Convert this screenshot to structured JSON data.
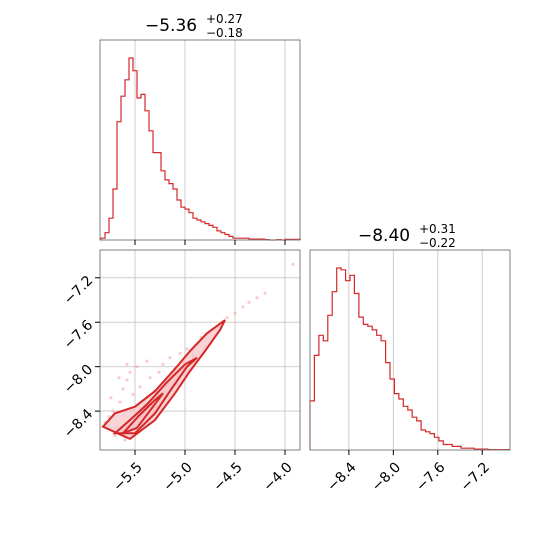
{
  "chart_data": [
    {
      "type": "histogram",
      "panel": "param-1-marginal",
      "title_value": "−5.36",
      "title_upper": "+0.27",
      "title_lower": "−0.18",
      "x_range": [
        -5.85,
        -3.85
      ],
      "x_ticks": [
        -5.5,
        -5.0,
        -4.5,
        -4.0
      ],
      "bins": [
        {
          "x": -5.84,
          "y": 0.01
        },
        {
          "x": -5.8,
          "y": 0.04
        },
        {
          "x": -5.76,
          "y": 0.12
        },
        {
          "x": -5.72,
          "y": 0.28
        },
        {
          "x": -5.68,
          "y": 0.65
        },
        {
          "x": -5.64,
          "y": 0.79
        },
        {
          "x": -5.6,
          "y": 0.88
        },
        {
          "x": -5.56,
          "y": 1.0
        },
        {
          "x": -5.52,
          "y": 0.93
        },
        {
          "x": -5.48,
          "y": 0.78
        },
        {
          "x": -5.44,
          "y": 0.8
        },
        {
          "x": -5.4,
          "y": 0.71
        },
        {
          "x": -5.36,
          "y": 0.6
        },
        {
          "x": -5.32,
          "y": 0.48
        },
        {
          "x": -5.28,
          "y": 0.48
        },
        {
          "x": -5.24,
          "y": 0.38
        },
        {
          "x": -5.2,
          "y": 0.33
        },
        {
          "x": -5.16,
          "y": 0.31
        },
        {
          "x": -5.12,
          "y": 0.28
        },
        {
          "x": -5.08,
          "y": 0.22
        },
        {
          "x": -5.04,
          "y": 0.18
        },
        {
          "x": -5.0,
          "y": 0.17
        },
        {
          "x": -4.96,
          "y": 0.15
        },
        {
          "x": -4.92,
          "y": 0.12
        },
        {
          "x": -4.88,
          "y": 0.11
        },
        {
          "x": -4.84,
          "y": 0.1
        },
        {
          "x": -4.8,
          "y": 0.09
        },
        {
          "x": -4.76,
          "y": 0.08
        },
        {
          "x": -4.72,
          "y": 0.07
        },
        {
          "x": -4.68,
          "y": 0.05
        },
        {
          "x": -4.64,
          "y": 0.04
        },
        {
          "x": -4.6,
          "y": 0.03
        },
        {
          "x": -4.56,
          "y": 0.02
        },
        {
          "x": -4.52,
          "y": 0.01
        },
        {
          "x": -4.48,
          "y": 0.01
        },
        {
          "x": -4.44,
          "y": 0.01
        },
        {
          "x": -4.4,
          "y": 0.01
        },
        {
          "x": -4.36,
          "y": 0.005
        },
        {
          "x": -4.32,
          "y": 0.005
        },
        {
          "x": -4.28,
          "y": 0.005
        },
        {
          "x": -4.24,
          "y": 0.005
        },
        {
          "x": -4.2,
          "y": 0.002
        },
        {
          "x": -4.16,
          "y": 0.0
        },
        {
          "x": -4.12,
          "y": 0.0
        },
        {
          "x": -4.08,
          "y": 0.002
        },
        {
          "x": -4.04,
          "y": 0.0
        },
        {
          "x": -4.0,
          "y": 0.004
        },
        {
          "x": -3.96,
          "y": 0.004
        },
        {
          "x": -3.92,
          "y": 0.004
        },
        {
          "x": -3.88,
          "y": 0.004
        }
      ]
    },
    {
      "type": "histogram",
      "panel": "param-2-marginal",
      "title_value": "−8.40",
      "title_upper": "+0.31",
      "title_lower": "−0.22",
      "x_range": [
        -8.75,
        -6.95
      ],
      "x_ticks": [
        -8.4,
        -8.0,
        -7.6,
        -7.2
      ],
      "bins": [
        {
          "x": -8.75,
          "y": 0.27
        },
        {
          "x": -8.71,
          "y": 0.52
        },
        {
          "x": -8.67,
          "y": 0.63
        },
        {
          "x": -8.63,
          "y": 0.6
        },
        {
          "x": -8.59,
          "y": 0.74
        },
        {
          "x": -8.55,
          "y": 0.87
        },
        {
          "x": -8.51,
          "y": 1.0
        },
        {
          "x": -8.47,
          "y": 0.99
        },
        {
          "x": -8.43,
          "y": 0.93
        },
        {
          "x": -8.39,
          "y": 0.96
        },
        {
          "x": -8.35,
          "y": 0.86
        },
        {
          "x": -8.31,
          "y": 0.73
        },
        {
          "x": -8.27,
          "y": 0.69
        },
        {
          "x": -8.23,
          "y": 0.68
        },
        {
          "x": -8.19,
          "y": 0.66
        },
        {
          "x": -8.15,
          "y": 0.63
        },
        {
          "x": -8.11,
          "y": 0.6
        },
        {
          "x": -8.07,
          "y": 0.48
        },
        {
          "x": -8.03,
          "y": 0.39
        },
        {
          "x": -7.99,
          "y": 0.31
        },
        {
          "x": -7.95,
          "y": 0.28
        },
        {
          "x": -7.91,
          "y": 0.24
        },
        {
          "x": -7.87,
          "y": 0.22
        },
        {
          "x": -7.83,
          "y": 0.18
        },
        {
          "x": -7.79,
          "y": 0.16
        },
        {
          "x": -7.75,
          "y": 0.11
        },
        {
          "x": -7.71,
          "y": 0.1
        },
        {
          "x": -7.67,
          "y": 0.09
        },
        {
          "x": -7.63,
          "y": 0.07
        },
        {
          "x": -7.59,
          "y": 0.05
        },
        {
          "x": -7.55,
          "y": 0.03
        },
        {
          "x": -7.51,
          "y": 0.03
        },
        {
          "x": -7.47,
          "y": 0.02
        },
        {
          "x": -7.43,
          "y": 0.02
        },
        {
          "x": -7.39,
          "y": 0.01
        },
        {
          "x": -7.35,
          "y": 0.01
        },
        {
          "x": -7.31,
          "y": 0.01
        },
        {
          "x": -7.27,
          "y": 0.005
        },
        {
          "x": -7.23,
          "y": 0.005
        },
        {
          "x": -7.19,
          "y": 0.005
        },
        {
          "x": -7.15,
          "y": 0.002
        },
        {
          "x": -7.11,
          "y": 0.002
        },
        {
          "x": -7.07,
          "y": 0.002
        },
        {
          "x": -7.03,
          "y": 0.002
        },
        {
          "x": -6.99,
          "y": 0.002
        }
      ]
    },
    {
      "type": "scatter",
      "panel": "joint",
      "x_range": [
        -5.85,
        -3.85
      ],
      "y_range": [
        -8.75,
        -6.95
      ],
      "x_ticks": [
        -5.5,
        -5.0,
        -4.5,
        -4.0
      ],
      "y_ticks": [
        -7.2,
        -7.6,
        -8.0,
        -8.4
      ],
      "x_tick_labels": [
        "−5.5",
        "−5.0",
        "−4.5",
        "−4.0"
      ],
      "y_tick_labels": [
        "−7.2",
        "−7.6",
        "−8.0",
        "−8.4"
      ],
      "contours": [
        {
          "level": "outer",
          "points": [
            [
              -5.82,
              -8.54
            ],
            [
              -5.55,
              -8.65
            ],
            [
              -5.3,
              -8.48
            ],
            [
              -5.1,
              -8.24
            ],
            [
              -4.95,
              -8.04
            ],
            [
              -4.8,
              -7.86
            ],
            [
              -4.65,
              -7.67
            ],
            [
              -4.6,
              -7.58
            ],
            [
              -4.78,
              -7.7
            ],
            [
              -4.95,
              -7.86
            ],
            [
              -5.12,
              -8.04
            ],
            [
              -5.3,
              -8.22
            ],
            [
              -5.5,
              -8.36
            ],
            [
              -5.7,
              -8.42
            ],
            [
              -5.82,
              -8.54
            ]
          ]
        },
        {
          "level": "middle",
          "points": [
            [
              -5.7,
              -8.6
            ],
            [
              -5.5,
              -8.6
            ],
            [
              -5.3,
              -8.42
            ],
            [
              -5.12,
              -8.18
            ],
            [
              -4.98,
              -8.0
            ],
            [
              -4.88,
              -7.92
            ],
            [
              -5.0,
              -7.98
            ],
            [
              -5.18,
              -8.14
            ],
            [
              -5.38,
              -8.34
            ],
            [
              -5.55,
              -8.48
            ],
            [
              -5.7,
              -8.6
            ]
          ]
        },
        {
          "level": "inner",
          "points": [
            [
              -5.62,
              -8.6
            ],
            [
              -5.48,
              -8.55
            ],
            [
              -5.32,
              -8.36
            ],
            [
              -5.22,
              -8.24
            ],
            [
              -5.3,
              -8.3
            ],
            [
              -5.46,
              -8.44
            ],
            [
              -5.62,
              -8.6
            ]
          ]
        }
      ],
      "points": [
        [
          -5.8,
          -8.5
        ],
        [
          -5.76,
          -8.45
        ],
        [
          -5.72,
          -8.4
        ],
        [
          -5.68,
          -8.55
        ],
        [
          -5.65,
          -8.32
        ],
        [
          -5.62,
          -8.2
        ],
        [
          -5.58,
          -8.12
        ],
        [
          -5.55,
          -8.05
        ],
        [
          -5.52,
          -8.25
        ],
        [
          -5.48,
          -8.0
        ],
        [
          -5.45,
          -8.18
        ],
        [
          -5.4,
          -8.35
        ],
        [
          -5.38,
          -7.95
        ],
        [
          -5.35,
          -8.1
        ],
        [
          -5.3,
          -8.22
        ],
        [
          -5.26,
          -8.05
        ],
        [
          -5.22,
          -7.98
        ],
        [
          -5.2,
          -8.15
        ],
        [
          -5.15,
          -7.92
        ],
        [
          -5.1,
          -8.02
        ],
        [
          -5.05,
          -7.88
        ],
        [
          -5.02,
          -7.96
        ],
        [
          -4.98,
          -7.84
        ],
        [
          -4.92,
          -7.9
        ],
        [
          -4.88,
          -7.8
        ],
        [
          -4.84,
          -7.74
        ],
        [
          -4.8,
          -7.82
        ],
        [
          -4.76,
          -7.7
        ],
        [
          -4.7,
          -7.66
        ],
        [
          -4.64,
          -7.62
        ],
        [
          -4.58,
          -7.56
        ],
        [
          -4.5,
          -7.52
        ],
        [
          -4.42,
          -7.46
        ],
        [
          -4.36,
          -7.42
        ],
        [
          -4.28,
          -7.38
        ],
        [
          -4.2,
          -7.34
        ],
        [
          -3.92,
          -7.08
        ],
        [
          -5.7,
          -8.62
        ],
        [
          -5.6,
          -8.66
        ],
        [
          -5.5,
          -8.58
        ],
        [
          -5.44,
          -8.52
        ],
        [
          -5.36,
          -8.46
        ],
        [
          -5.28,
          -8.36
        ],
        [
          -5.18,
          -8.26
        ],
        [
          -5.08,
          -8.16
        ],
        [
          -4.98,
          -8.06
        ],
        [
          -4.9,
          -7.96
        ],
        [
          -5.74,
          -8.28
        ],
        [
          -5.66,
          -8.1
        ],
        [
          -5.58,
          -7.98
        ]
      ]
    }
  ]
}
